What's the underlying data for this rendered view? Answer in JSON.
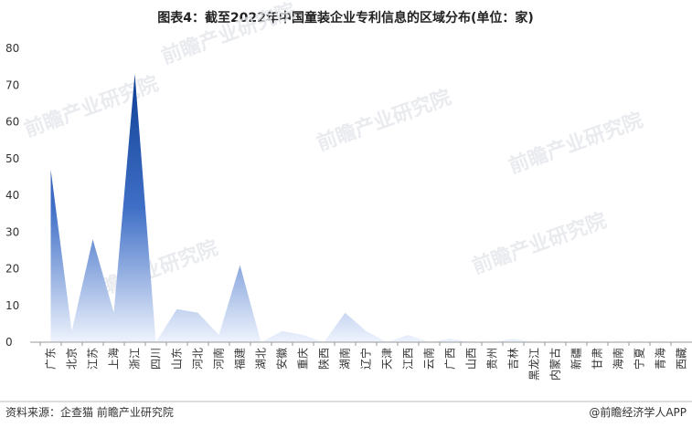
{
  "chart_data": {
    "type": "area",
    "title": "图表4：截至2022年中国童装企业专利信息的区域分布(单位：家)",
    "categories": [
      "广东",
      "北京",
      "江苏",
      "上海",
      "浙江",
      "四川",
      "山东",
      "河北",
      "河南",
      "福建",
      "湖北",
      "安徽",
      "重庆",
      "陕西",
      "湖南",
      "辽宁",
      "天津",
      "江西",
      "云南",
      "广西",
      "山西",
      "贵州",
      "吉林",
      "黑龙江",
      "内蒙古",
      "新疆",
      "甘肃",
      "海南",
      "宁夏",
      "青海",
      "西藏"
    ],
    "series": [
      {
        "color": "#0f3f94",
        "values": [
          47,
          3,
          28,
          8,
          73,
          0,
          9,
          8,
          2,
          21,
          0,
          3,
          2,
          0,
          8,
          3,
          0,
          2,
          0,
          1,
          0,
          0,
          1,
          0,
          0,
          0,
          0,
          0,
          0,
          0,
          0
        ]
      }
    ],
    "ylim": [
      0,
      80
    ],
    "yticks": [
      0,
      10,
      20,
      30,
      40,
      50,
      60,
      70,
      80
    ],
    "grid": false,
    "source": "资料来源：企查猫 前瞻产业研究院",
    "credit": "@前瞻经济学人APP",
    "watermark": "前瞻产业研究院"
  }
}
